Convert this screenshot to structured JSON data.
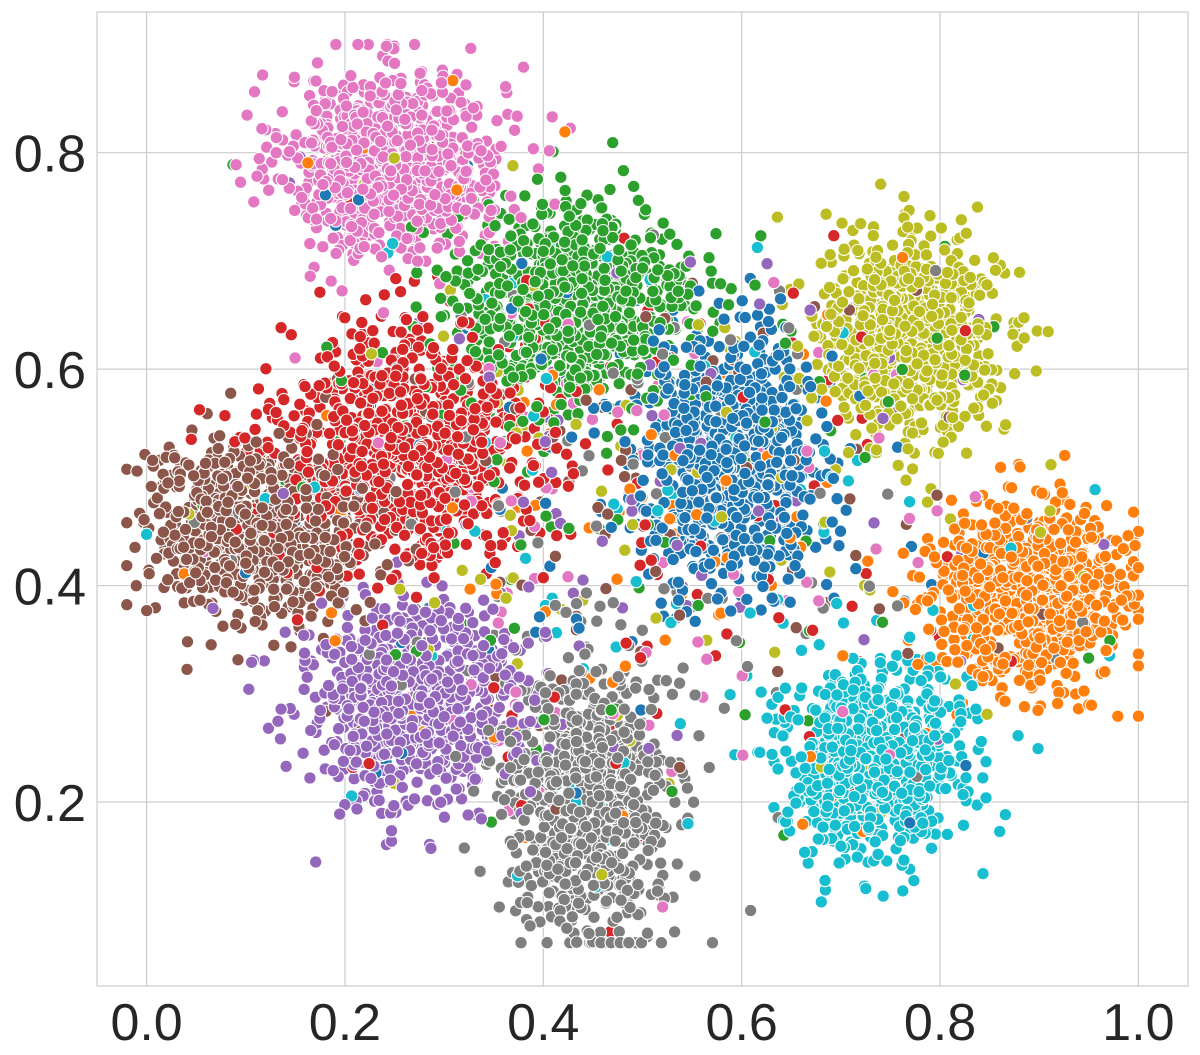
{
  "chart_data": {
    "type": "scatter",
    "title": "",
    "xlabel": "",
    "ylabel": "",
    "xlim": [
      -0.05,
      1.05
    ],
    "ylim": [
      0.03,
      0.93
    ],
    "x_ticks": [
      0.0,
      0.2,
      0.4,
      0.6,
      0.8,
      1.0
    ],
    "y_ticks": [
      0.2,
      0.4,
      0.6,
      0.8
    ],
    "x_tick_labels": [
      "0.0",
      "0.2",
      "0.4",
      "0.6",
      "0.8",
      "1.0"
    ],
    "y_tick_labels": [
      "0.2",
      "0.4",
      "0.6",
      "0.8"
    ],
    "grid": true,
    "legend": "none",
    "palette": [
      "#1f77b4",
      "#ff7f0e",
      "#2ca02c",
      "#d62728",
      "#9467bd",
      "#8c564b",
      "#e377c2",
      "#7f7f7f",
      "#bcbd22",
      "#17becf"
    ],
    "clusters": [
      {
        "color": "#e377c2",
        "center": [
          0.25,
          0.79
        ],
        "spread": [
          0.055,
          0.042
        ],
        "approx_points": 900
      },
      {
        "color": "#2ca02c",
        "center": [
          0.43,
          0.66
        ],
        "spread": [
          0.06,
          0.045
        ],
        "approx_points": 900
      },
      {
        "color": "#d62728",
        "center": [
          0.26,
          0.53
        ],
        "spread": [
          0.065,
          0.055
        ],
        "approx_points": 900
      },
      {
        "color": "#1f77b4",
        "center": [
          0.59,
          0.52
        ],
        "spread": [
          0.045,
          0.055
        ],
        "approx_points": 800
      },
      {
        "color": "#bcbd22",
        "center": [
          0.77,
          0.63
        ],
        "spread": [
          0.045,
          0.045
        ],
        "approx_points": 800
      },
      {
        "color": "#8c564b",
        "center": [
          0.11,
          0.45
        ],
        "spread": [
          0.055,
          0.04
        ],
        "approx_points": 850
      },
      {
        "color": "#ff7f0e",
        "center": [
          0.89,
          0.39
        ],
        "spread": [
          0.05,
          0.04
        ],
        "approx_points": 850
      },
      {
        "color": "#9467bd",
        "center": [
          0.27,
          0.29
        ],
        "spread": [
          0.055,
          0.045
        ],
        "approx_points": 800
      },
      {
        "color": "#7f7f7f",
        "center": [
          0.44,
          0.2
        ],
        "spread": [
          0.045,
          0.065
        ],
        "approx_points": 800
      },
      {
        "color": "#17becf",
        "center": [
          0.73,
          0.24
        ],
        "spread": [
          0.045,
          0.045
        ],
        "approx_points": 800
      }
    ]
  }
}
